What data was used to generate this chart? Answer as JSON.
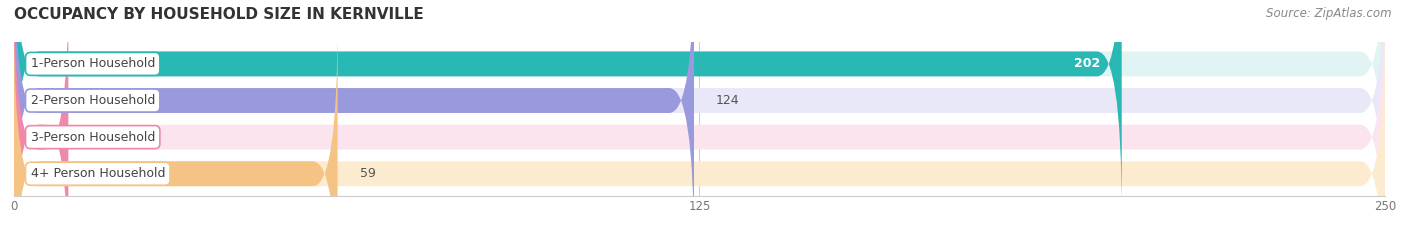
{
  "title": "OCCUPANCY BY HOUSEHOLD SIZE IN KERNVILLE",
  "source": "Source: ZipAtlas.com",
  "categories": [
    "1-Person Household",
    "2-Person Household",
    "3-Person Household",
    "4+ Person Household"
  ],
  "values": [
    202,
    124,
    0,
    59
  ],
  "bar_colors": [
    "#29b8b4",
    "#9999dd",
    "#f088aa",
    "#f5c484"
  ],
  "bar_bg_colors": [
    "#e0f4f4",
    "#e8e8f8",
    "#fce4ee",
    "#fdebd0"
  ],
  "xlim": [
    0,
    250
  ],
  "xticks": [
    0,
    125,
    250
  ],
  "figsize": [
    14.06,
    2.33
  ],
  "dpi": 100,
  "background_color": "#ffffff",
  "bar_height": 0.68,
  "title_fontsize": 11,
  "source_fontsize": 8.5,
  "bar_label_fontsize": 9,
  "category_fontsize": 9
}
